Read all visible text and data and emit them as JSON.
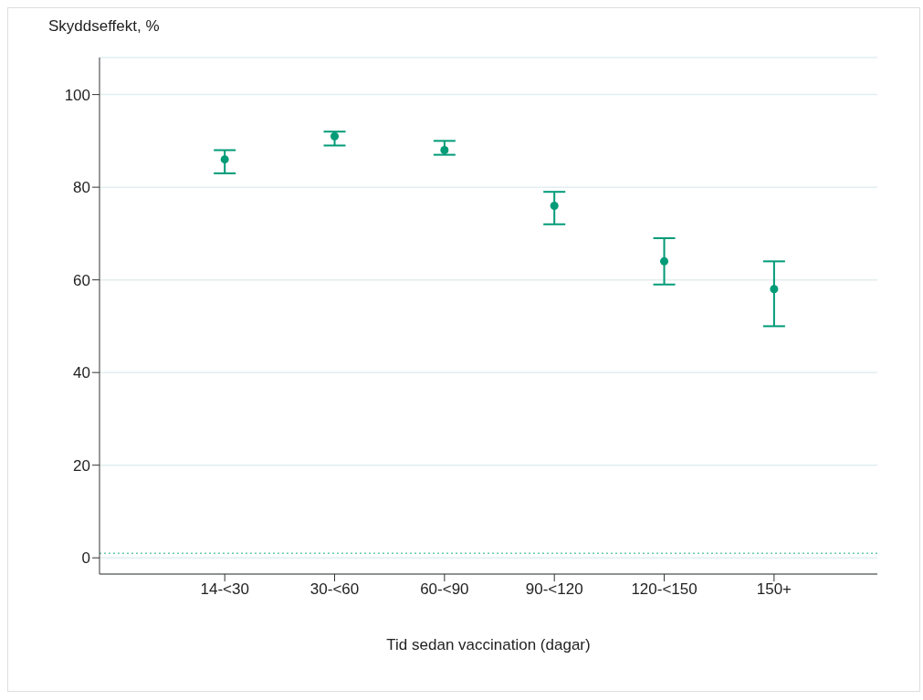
{
  "chart_data": {
    "type": "scatter",
    "ylabel": "Skyddseffekt, %",
    "xlabel": "Tid sedan vaccination (dagar)",
    "categories": [
      "14-<30",
      "30-<60",
      "60-<90",
      "90-<120",
      "120-<150",
      "150+"
    ],
    "series": [
      {
        "color": "#009b77",
        "values": [
          86,
          91,
          88,
          76,
          64,
          58
        ],
        "errors": [
          [
            83,
            88
          ],
          [
            89,
            92
          ],
          [
            87,
            90
          ],
          [
            72,
            79
          ],
          [
            59,
            69
          ],
          [
            50,
            64
          ]
        ]
      }
    ],
    "ylim": [
      -3.5,
      108
    ],
    "yticks": [
      0,
      20,
      40,
      60,
      80,
      100
    ],
    "grid": "y",
    "marker": "circle",
    "ref_lines": [
      {
        "axis": "y",
        "value": 1,
        "color": "#66ccaa",
        "line_style": "dotted"
      }
    ]
  }
}
